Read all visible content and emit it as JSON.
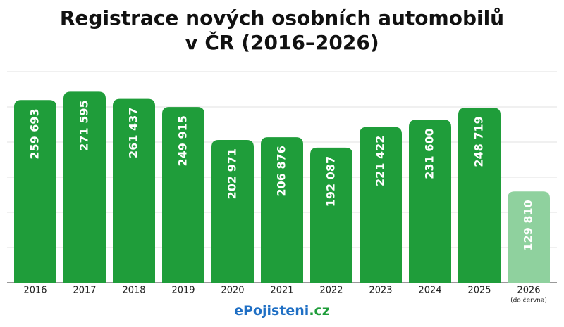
{
  "chart_data": {
    "type": "bar",
    "title": [
      "Registrace nových osobních automobilů",
      "v ČR (2016–2026)"
    ],
    "categories": [
      "2016",
      "2017",
      "2018",
      "2019",
      "2020",
      "2021",
      "2022",
      "2023",
      "2024",
      "2025",
      "2026"
    ],
    "values": [
      259693,
      271595,
      261437,
      249915,
      202971,
      206876,
      192087,
      221422,
      231600,
      248719,
      129810
    ],
    "value_labels": [
      "259 693",
      "271 595",
      "261 437",
      "249 915",
      "202 971",
      "206 876",
      "192 087",
      "221 422",
      "231 600",
      "248 719",
      "129 810"
    ],
    "colors": [
      "#1f9d3a",
      "#1f9d3a",
      "#1f9d3a",
      "#1f9d3a",
      "#1f9d3a",
      "#1f9d3a",
      "#1f9d3a",
      "#1f9d3a",
      "#1f9d3a",
      "#1f9d3a",
      "#8fd19e"
    ],
    "category_notes": [
      null,
      null,
      null,
      null,
      null,
      null,
      null,
      null,
      null,
      null,
      "(do června)"
    ],
    "ylim": [
      0,
      300000
    ],
    "yticks": [
      0,
      50000,
      100000,
      150000,
      200000,
      250000,
      300000
    ],
    "grid": true,
    "brand": [
      {
        "text": "ePojisteni",
        "color": "#1f6fc4"
      },
      {
        "text": ".cz",
        "color": "#1f9d3a"
      }
    ]
  }
}
